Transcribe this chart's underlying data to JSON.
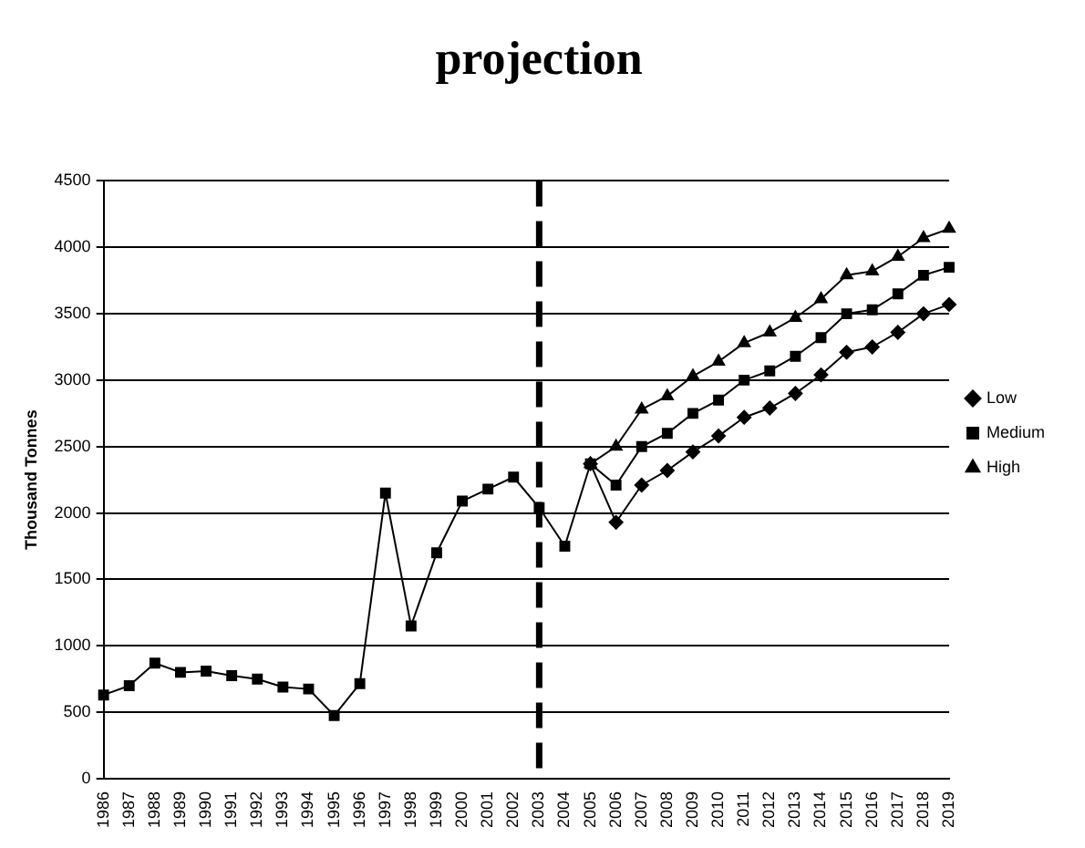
{
  "chart_data": {
    "type": "line",
    "title": "projection",
    "ylabel": "Thousand Tonnes",
    "categories": [
      "1986",
      "1987",
      "1988",
      "1989",
      "1990",
      "1991",
      "1992",
      "1993",
      "1994",
      "1995",
      "1996",
      "1997",
      "1998",
      "1999",
      "2000",
      "2001",
      "2002",
      "2003",
      "2004",
      "2005",
      "2006",
      "2007",
      "2008",
      "2009",
      "2010",
      "2011",
      "2012",
      "2013",
      "2014",
      "2015",
      "2016",
      "2017",
      "2018",
      "2019"
    ],
    "series": [
      {
        "name": "Low",
        "color": "#000000",
        "marker": "diamond",
        "values": [
          null,
          null,
          null,
          null,
          null,
          null,
          null,
          null,
          null,
          null,
          null,
          null,
          null,
          null,
          null,
          null,
          null,
          null,
          null,
          2370,
          1930,
          2210,
          2320,
          2460,
          2580,
          2720,
          2790,
          2900,
          3040,
          3210,
          3250,
          3360,
          3500,
          3570
        ]
      },
      {
        "name": "Medium",
        "color": "#000000",
        "marker": "square",
        "values": [
          630,
          700,
          870,
          800,
          810,
          775,
          750,
          690,
          675,
          475,
          715,
          2150,
          1150,
          1700,
          2090,
          2180,
          2270,
          2040,
          1750,
          2370,
          2210,
          2500,
          2600,
          2750,
          2850,
          3000,
          3070,
          3180,
          3320,
          3500,
          3530,
          3650,
          3790,
          3850
        ]
      },
      {
        "name": "High",
        "color": "#000000",
        "marker": "triangle",
        "values": [
          null,
          null,
          null,
          null,
          null,
          null,
          null,
          null,
          null,
          null,
          null,
          null,
          null,
          null,
          null,
          null,
          null,
          null,
          null,
          2370,
          2500,
          2780,
          2880,
          3030,
          3140,
          3280,
          3360,
          3470,
          3610,
          3790,
          3820,
          3930,
          4070,
          4140
        ]
      }
    ],
    "ylim": [
      0,
      4500
    ],
    "yticks": [
      0,
      500,
      1000,
      1500,
      2000,
      2500,
      3000,
      3500,
      4000,
      4500
    ],
    "grid": "y",
    "legend": "right",
    "line_style": "solid",
    "ref_lines": [
      {
        "axis": "x",
        "value": "2003",
        "color": "#000000",
        "line_style": "dashed"
      }
    ]
  }
}
